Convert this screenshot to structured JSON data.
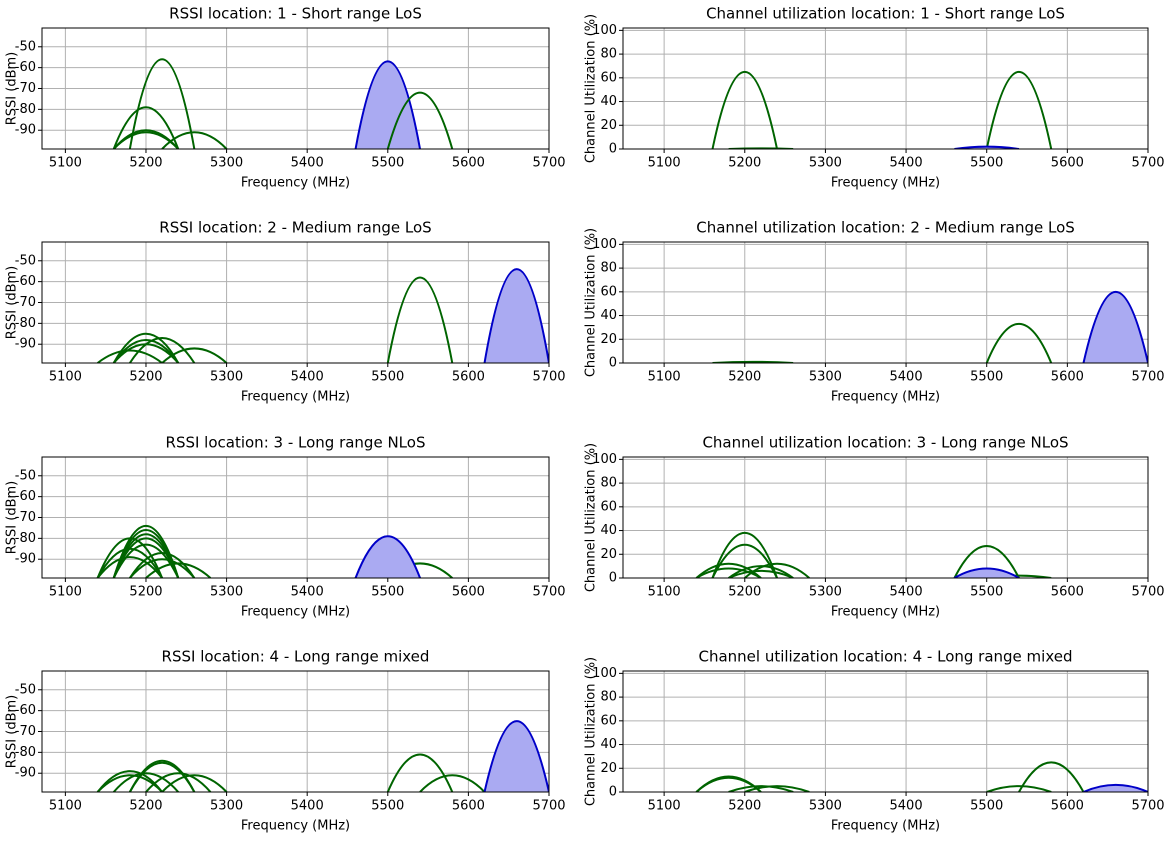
{
  "chart_data": [
    {
      "type": "line",
      "title": "RSSI location: 1 - Short range LoS",
      "x_label": "Frequency (MHz)",
      "y_label": "RSSI (dBm)",
      "xlim": [
        5071,
        5700
      ],
      "ylim": [
        -99,
        -41
      ],
      "xticks": [
        5100,
        5200,
        5300,
        5400,
        5500,
        5600,
        5700
      ],
      "yticks": [
        -90,
        -80,
        -70,
        -60,
        -50
      ],
      "grid": true,
      "series": [
        {
          "color": "#006400",
          "x": [
            5180,
            5220,
            5260
          ],
          "values": [
            -99,
            -56,
            -99
          ]
        },
        {
          "color": "#006400",
          "x": [
            5160,
            5200,
            5240
          ],
          "values": [
            -99,
            -79,
            -99
          ]
        },
        {
          "color": "#006400",
          "x": [
            5160,
            5200,
            5240
          ],
          "values": [
            -99,
            -90,
            -99
          ]
        },
        {
          "color": "#006400",
          "x": [
            5160,
            5200,
            5240
          ],
          "values": [
            -99,
            -91,
            -99
          ]
        },
        {
          "color": "#006400",
          "x": [
            5220,
            5260,
            5300
          ],
          "values": [
            -99,
            -91,
            -99
          ]
        },
        {
          "color": "#0000c8",
          "fill": "#aaaaf2",
          "x": [
            5460,
            5500,
            5540
          ],
          "values": [
            -99,
            -57,
            -99
          ]
        },
        {
          "color": "#006400",
          "x": [
            5500,
            5540,
            5580
          ],
          "values": [
            -99,
            -72,
            -99
          ]
        }
      ]
    },
    {
      "type": "line",
      "title": "Channel utilization location: 1 - Short range LoS",
      "x_label": "Frequency (MHz)",
      "y_label": "Channel Utilization (%)",
      "xlim": [
        5049,
        5700
      ],
      "ylim": [
        0,
        102
      ],
      "xticks": [
        5100,
        5200,
        5300,
        5400,
        5500,
        5600,
        5700
      ],
      "yticks": [
        0,
        20,
        40,
        60,
        80,
        100
      ],
      "grid": true,
      "series": [
        {
          "color": "#006400",
          "x": [
            5160,
            5200,
            5240
          ],
          "values": [
            0,
            65,
            0
          ]
        },
        {
          "color": "#006400",
          "x": [
            5180,
            5220,
            5260
          ],
          "values": [
            0,
            0.5,
            0
          ]
        },
        {
          "color": "#006400",
          "x": [
            5500,
            5540,
            5580
          ],
          "values": [
            0,
            65,
            0
          ]
        },
        {
          "color": "#0000c8",
          "fill": "#aaaaf2",
          "x": [
            5460,
            5500,
            5540
          ],
          "values": [
            0,
            2,
            0
          ]
        }
      ]
    },
    {
      "type": "line",
      "title": "RSSI location: 2 - Medium range LoS",
      "x_label": "Frequency (MHz)",
      "y_label": "RSSI (dBm)",
      "xlim": [
        5071,
        5700
      ],
      "ylim": [
        -99,
        -41
      ],
      "xticks": [
        5100,
        5200,
        5300,
        5400,
        5500,
        5600,
        5700
      ],
      "yticks": [
        -90,
        -80,
        -70,
        -60,
        -50
      ],
      "grid": true,
      "series": [
        {
          "color": "#006400",
          "x": [
            5160,
            5200,
            5240
          ],
          "values": [
            -99,
            -85,
            -99
          ]
        },
        {
          "color": "#006400",
          "x": [
            5160,
            5200,
            5240
          ],
          "values": [
            -99,
            -88,
            -99
          ]
        },
        {
          "color": "#006400",
          "x": [
            5180,
            5220,
            5260
          ],
          "values": [
            -99,
            -87,
            -99
          ]
        },
        {
          "color": "#006400",
          "x": [
            5160,
            5200,
            5240
          ],
          "values": [
            -99,
            -90,
            -99
          ]
        },
        {
          "color": "#006400",
          "x": [
            5220,
            5260,
            5300
          ],
          "values": [
            -99,
            -92,
            -99
          ]
        },
        {
          "color": "#006400",
          "x": [
            5140,
            5180,
            5220
          ],
          "values": [
            -99,
            -93,
            -99
          ]
        },
        {
          "color": "#006400",
          "x": [
            5500,
            5540,
            5580
          ],
          "values": [
            -99,
            -58,
            -99
          ]
        },
        {
          "color": "#0000c8",
          "fill": "#aaaaf2",
          "x": [
            5620,
            5660,
            5700
          ],
          "values": [
            -99,
            -54,
            -99
          ]
        }
      ]
    },
    {
      "type": "line",
      "title": "Channel utilization location: 2 - Medium range LoS",
      "x_label": "Frequency (MHz)",
      "y_label": "Channel Utilization (%)",
      "xlim": [
        5049,
        5700
      ],
      "ylim": [
        0,
        102
      ],
      "xticks": [
        5100,
        5200,
        5300,
        5400,
        5500,
        5600,
        5700
      ],
      "yticks": [
        0,
        20,
        40,
        60,
        80,
        100
      ],
      "grid": true,
      "series": [
        {
          "color": "#006400",
          "x": [
            5160,
            5210,
            5260
          ],
          "values": [
            0,
            1,
            0
          ]
        },
        {
          "color": "#006400",
          "x": [
            5500,
            5540,
            5580
          ],
          "values": [
            0,
            33,
            0
          ]
        },
        {
          "color": "#0000c8",
          "fill": "#aaaaf2",
          "x": [
            5620,
            5660,
            5700
          ],
          "values": [
            0,
            60,
            0
          ]
        }
      ]
    },
    {
      "type": "line",
      "title": "RSSI location: 3 - Long range NLoS",
      "x_label": "Frequency (MHz)",
      "y_label": "RSSI (dBm)",
      "xlim": [
        5071,
        5700
      ],
      "ylim": [
        -99,
        -41
      ],
      "xticks": [
        5100,
        5200,
        5300,
        5400,
        5500,
        5600,
        5700
      ],
      "yticks": [
        -90,
        -80,
        -70,
        -60,
        -50
      ],
      "grid": true,
      "series": [
        {
          "color": "#006400",
          "x": [
            5160,
            5200,
            5240
          ],
          "values": [
            -99,
            -74,
            -99
          ]
        },
        {
          "color": "#006400",
          "x": [
            5160,
            5200,
            5240
          ],
          "values": [
            -99,
            -76,
            -99
          ]
        },
        {
          "color": "#006400",
          "x": [
            5160,
            5200,
            5240
          ],
          "values": [
            -99,
            -78,
            -99
          ]
        },
        {
          "color": "#006400",
          "x": [
            5160,
            5200,
            5240
          ],
          "values": [
            -99,
            -80,
            -99
          ]
        },
        {
          "color": "#006400",
          "x": [
            5160,
            5200,
            5240
          ],
          "values": [
            -99,
            -83,
            -99
          ]
        },
        {
          "color": "#006400",
          "x": [
            5140,
            5180,
            5220
          ],
          "values": [
            -99,
            -80,
            -99
          ]
        },
        {
          "color": "#006400",
          "x": [
            5140,
            5180,
            5220
          ],
          "values": [
            -99,
            -85,
            -99
          ]
        },
        {
          "color": "#006400",
          "x": [
            5140,
            5180,
            5220
          ],
          "values": [
            -99,
            -89,
            -99
          ]
        },
        {
          "color": "#006400",
          "x": [
            5180,
            5220,
            5260
          ],
          "values": [
            -99,
            -87,
            -99
          ]
        },
        {
          "color": "#006400",
          "x": [
            5180,
            5220,
            5260
          ],
          "values": [
            -99,
            -90,
            -99
          ]
        },
        {
          "color": "#006400",
          "x": [
            5200,
            5240,
            5280
          ],
          "values": [
            -99,
            -92,
            -99
          ]
        },
        {
          "color": "#006400",
          "x": [
            5460,
            5500,
            5540
          ],
          "values": [
            -99,
            -88,
            -99
          ]
        },
        {
          "color": "#006400",
          "x": [
            5460,
            5500,
            5540
          ],
          "values": [
            -99,
            -90,
            -99
          ]
        },
        {
          "color": "#006400",
          "x": [
            5460,
            5500,
            5540
          ],
          "values": [
            -99,
            -93,
            -99
          ]
        },
        {
          "color": "#006400",
          "x": [
            5500,
            5540,
            5580
          ],
          "values": [
            -99,
            -92,
            -99
          ]
        },
        {
          "color": "#0000c8",
          "fill": "#aaaaf2",
          "x": [
            5460,
            5500,
            5540
          ],
          "values": [
            -99,
            -79,
            -99
          ]
        }
      ]
    },
    {
      "type": "line",
      "title": "Channel utilization location: 3 - Long range NLoS",
      "x_label": "Frequency (MHz)",
      "y_label": "Channel Utilization (%)",
      "xlim": [
        5049,
        5700
      ],
      "ylim": [
        0,
        102
      ],
      "xticks": [
        5100,
        5200,
        5300,
        5400,
        5500,
        5600,
        5700
      ],
      "yticks": [
        0,
        20,
        40,
        60,
        80,
        100
      ],
      "grid": true,
      "series": [
        {
          "color": "#006400",
          "x": [
            5160,
            5200,
            5240
          ],
          "values": [
            0,
            38,
            0
          ]
        },
        {
          "color": "#006400",
          "x": [
            5160,
            5200,
            5240
          ],
          "values": [
            0,
            28,
            0
          ]
        },
        {
          "color": "#006400",
          "x": [
            5140,
            5180,
            5220
          ],
          "values": [
            0,
            12,
            0
          ]
        },
        {
          "color": "#006400",
          "x": [
            5140,
            5180,
            5220
          ],
          "values": [
            0,
            8,
            0
          ]
        },
        {
          "color": "#006400",
          "x": [
            5180,
            5220,
            5260
          ],
          "values": [
            0,
            10,
            0
          ]
        },
        {
          "color": "#006400",
          "x": [
            5180,
            5220,
            5260
          ],
          "values": [
            0,
            6,
            0
          ]
        },
        {
          "color": "#006400",
          "x": [
            5200,
            5240,
            5280
          ],
          "values": [
            0,
            12,
            0
          ]
        },
        {
          "color": "#006400",
          "x": [
            5460,
            5500,
            5540
          ],
          "values": [
            0,
            27,
            0
          ]
        },
        {
          "color": "#006400",
          "x": [
            5500,
            5540,
            5580
          ],
          "values": [
            0,
            2,
            0
          ]
        },
        {
          "color": "#0000c8",
          "fill": "#aaaaf2",
          "x": [
            5460,
            5500,
            5540
          ],
          "values": [
            0,
            8,
            0
          ]
        }
      ]
    },
    {
      "type": "line",
      "title": "RSSI location: 4 - Long range mixed",
      "x_label": "Frequency (MHz)",
      "y_label": "RSSI (dBm)",
      "xlim": [
        5071,
        5700
      ],
      "ylim": [
        -99,
        -41
      ],
      "xticks": [
        5100,
        5200,
        5300,
        5400,
        5500,
        5600,
        5700
      ],
      "yticks": [
        -90,
        -80,
        -70,
        -60,
        -50
      ],
      "grid": true,
      "series": [
        {
          "color": "#006400",
          "x": [
            5140,
            5180,
            5220
          ],
          "values": [
            -99,
            -89,
            -99
          ]
        },
        {
          "color": "#006400",
          "x": [
            5140,
            5180,
            5220
          ],
          "values": [
            -99,
            -91,
            -99
          ]
        },
        {
          "color": "#006400",
          "x": [
            5160,
            5200,
            5240
          ],
          "values": [
            -99,
            -90,
            -99
          ]
        },
        {
          "color": "#006400",
          "x": [
            5180,
            5220,
            5260
          ],
          "values": [
            -99,
            -84,
            -99
          ]
        },
        {
          "color": "#006400",
          "x": [
            5180,
            5220,
            5260
          ],
          "values": [
            -99,
            -85,
            -99
          ]
        },
        {
          "color": "#006400",
          "x": [
            5200,
            5240,
            5280
          ],
          "values": [
            -99,
            -90,
            -99
          ]
        },
        {
          "color": "#006400",
          "x": [
            5220,
            5260,
            5300
          ],
          "values": [
            -99,
            -91,
            -99
          ]
        },
        {
          "color": "#006400",
          "x": [
            5500,
            5540,
            5580
          ],
          "values": [
            -99,
            -81,
            -99
          ]
        },
        {
          "color": "#006400",
          "x": [
            5540,
            5580,
            5620
          ],
          "values": [
            -99,
            -91,
            -99
          ]
        },
        {
          "color": "#0000c8",
          "fill": "#aaaaf2",
          "x": [
            5620,
            5660,
            5700
          ],
          "values": [
            -99,
            -65,
            -99
          ]
        }
      ]
    },
    {
      "type": "line",
      "title": "Channel utilization location: 4 - Long range mixed",
      "x_label": "Frequency (MHz)",
      "y_label": "Channel Utilization (%)",
      "xlim": [
        5049,
        5700
      ],
      "ylim": [
        0,
        102
      ],
      "xticks": [
        5100,
        5200,
        5300,
        5400,
        5500,
        5600,
        5700
      ],
      "yticks": [
        0,
        20,
        40,
        60,
        80,
        100
      ],
      "grid": true,
      "series": [
        {
          "color": "#006400",
          "x": [
            5140,
            5180,
            5220
          ],
          "values": [
            0,
            13,
            0
          ]
        },
        {
          "color": "#006400",
          "x": [
            5140,
            5180,
            5220
          ],
          "values": [
            0,
            12,
            0
          ]
        },
        {
          "color": "#006400",
          "x": [
            5180,
            5220,
            5260
          ],
          "values": [
            0,
            5,
            0
          ]
        },
        {
          "color": "#006400",
          "x": [
            5200,
            5240,
            5280
          ],
          "values": [
            0,
            5,
            0
          ]
        },
        {
          "color": "#006400",
          "x": [
            5500,
            5540,
            5580
          ],
          "values": [
            0,
            5,
            0
          ]
        },
        {
          "color": "#006400",
          "x": [
            5540,
            5580,
            5620
          ],
          "values": [
            0,
            25,
            0
          ]
        },
        {
          "color": "#0000c8",
          "fill": "#aaaaf2",
          "x": [
            5620,
            5660,
            5700
          ],
          "values": [
            0,
            6,
            0
          ]
        }
      ]
    }
  ]
}
